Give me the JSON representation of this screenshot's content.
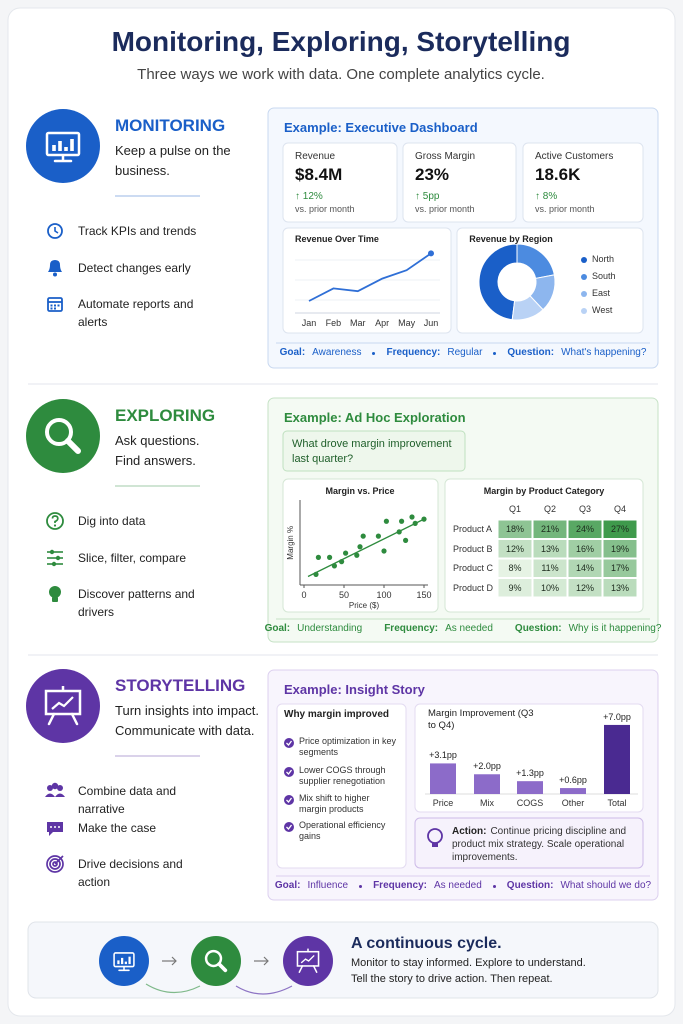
{
  "header": {
    "title": "Monitoring, Exploring, Storytelling",
    "subtitle": "Three ways we work with data.  One complete analytics cycle."
  },
  "sections": [
    {
      "name": "MONITORING",
      "tagline": "Keep a pulse on the business.",
      "color": "#1a5fc8",
      "items": [
        "Track KPIs and trends",
        "Detect changes early",
        "Automate reports and alerts"
      ],
      "example": {
        "title": "Example: Executive Dashboard",
        "kpis": [
          {
            "label": "Revenue",
            "value": "$8.4M",
            "change": "↑ 12%",
            "note": "vs. prior month"
          },
          {
            "label": "Gross Margin",
            "value": "23%",
            "change": "↑ 5pp",
            "note": "vs. prior month"
          },
          {
            "label": "Active Customers",
            "value": "18.6K",
            "change": "↑ 8%",
            "note": "vs. prior month"
          }
        ],
        "line_chart": {
          "type": "line",
          "title": "Revenue Over Time",
          "categories": [
            "Jan",
            "Feb",
            "Mar",
            "Apr",
            "May",
            "Jun"
          ],
          "values": [
            2.0,
            3.8,
            3.4,
            5.2,
            6.4,
            8.8
          ],
          "ylim": [
            0,
            10
          ],
          "color": "#2f6fd6"
        },
        "donut": {
          "type": "pie",
          "title": "Revenue by Region",
          "categories": [
            "North",
            "South",
            "East",
            "West"
          ],
          "values": [
            48,
            22,
            16,
            14
          ],
          "colors": [
            "#1a5fc8",
            "#4c8be0",
            "#8db6ee",
            "#b9d2f5"
          ]
        },
        "footer": [
          {
            "label": "Goal:",
            "value": "Awareness"
          },
          {
            "label": "Frequency:",
            "value": "Regular"
          },
          {
            "label": "Question:",
            "value": "What's happening?"
          }
        ]
      }
    },
    {
      "name": "EXPLORING",
      "tagline": "Ask questions. Find answers.",
      "color": "#2e8b3e",
      "items": [
        "Dig into data",
        "Slice, filter, compare",
        "Discover patterns and drivers"
      ],
      "example": {
        "title": "Example: Ad Hoc Exploration",
        "question": "What drove margin improvement last quarter?",
        "scatter": {
          "type": "scatter",
          "title": "Margin vs. Price",
          "x_label": "Price ($)",
          "y_label": "Margin %",
          "x": [
            15,
            18,
            32,
            38,
            47,
            52,
            66,
            70,
            74,
            93,
            100,
            103,
            119,
            122,
            127,
            135,
            139,
            150
          ],
          "y": [
            5,
            13,
            13,
            9,
            11,
            15,
            14,
            18,
            23,
            23,
            16,
            30,
            25,
            30,
            21,
            32,
            29,
            31
          ],
          "xlim": [
            -5,
            155
          ],
          "ylim": [
            0,
            40
          ],
          "xticks": [
            0,
            50,
            100,
            150
          ],
          "trend": {
            "x": [
              5,
              150
            ],
            "y": [
              4,
              31
            ]
          },
          "color": "#2e8b3e"
        },
        "heatmap": {
          "type": "heatmap",
          "title": "Margin by Product Category",
          "columns": [
            "Q1",
            "Q2",
            "Q3",
            "Q4"
          ],
          "rows": [
            {
              "name": "Product A",
              "values": [
                18,
                21,
                24,
                27
              ],
              "value_labels": [
                "18%",
                "21%",
                "24%",
                "27%"
              ]
            },
            {
              "name": "Product B",
              "values": [
                12,
                13,
                16,
                19
              ],
              "value_labels": [
                "12%",
                "13%",
                "16%",
                "19%"
              ]
            },
            {
              "name": "Product C",
              "values": [
                8,
                11,
                14,
                17
              ],
              "value_labels": [
                "8%",
                "11%",
                "14%",
                "17%"
              ]
            },
            {
              "name": "Product D",
              "values": [
                9,
                10,
                12,
                13
              ],
              "value_labels": [
                "9%",
                "10%",
                "12%",
                "13%"
              ]
            }
          ]
        },
        "footer": [
          {
            "label": "Goal:",
            "value": "Understanding"
          },
          {
            "label": "Frequency:",
            "value": "As needed"
          },
          {
            "label": "Question:",
            "value": "Why is it happening?"
          }
        ]
      }
    },
    {
      "name": "STORYTELLING",
      "tagline": "Turn insights into impact. Communicate with data.",
      "color": "#5e35a5",
      "items": [
        "Combine data and narrative",
        "Make the case",
        "Drive decisions and action"
      ],
      "example": {
        "title": "Example: Insight Story",
        "reasons": {
          "title": "Why margin improved",
          "items": [
            "Price optimization in key segments",
            "Lower COGS through supplier renegotiation",
            "Mix shift to higher margin products",
            "Operational efficiency gains"
          ]
        },
        "bar_chart": {
          "type": "bar",
          "title": "Margin Improvement (Q3 to Q4)",
          "categories": [
            "Price",
            "Mix",
            "COGS",
            "Other",
            "Total"
          ],
          "values": [
            3.1,
            2.0,
            1.3,
            0.6,
            7.0
          ],
          "value_labels": [
            "+3.1pp",
            "+2.0pp",
            "+1.3pp",
            "+0.6pp",
            "+7.0pp"
          ],
          "ylim": [
            0,
            7.5
          ],
          "colors": [
            "#8c6bc9",
            "#8c6bc9",
            "#8c6bc9",
            "#8c6bc9",
            "#4a2a91"
          ]
        },
        "action": {
          "label": "Action:",
          "text": "Continue pricing discipline and product mix strategy.  Scale operational improvements."
        },
        "footer": [
          {
            "label": "Goal:",
            "value": "Influence"
          },
          {
            "label": "Frequency:",
            "value": "As needed"
          },
          {
            "label": "Question:",
            "value": "What should we do?"
          }
        ]
      }
    }
  ],
  "cycle": {
    "title": "A continuous cycle.",
    "lines": [
      "Monitor to stay informed.  Explore to understand.",
      "Tell the story to drive action.  Then repeat."
    ]
  }
}
